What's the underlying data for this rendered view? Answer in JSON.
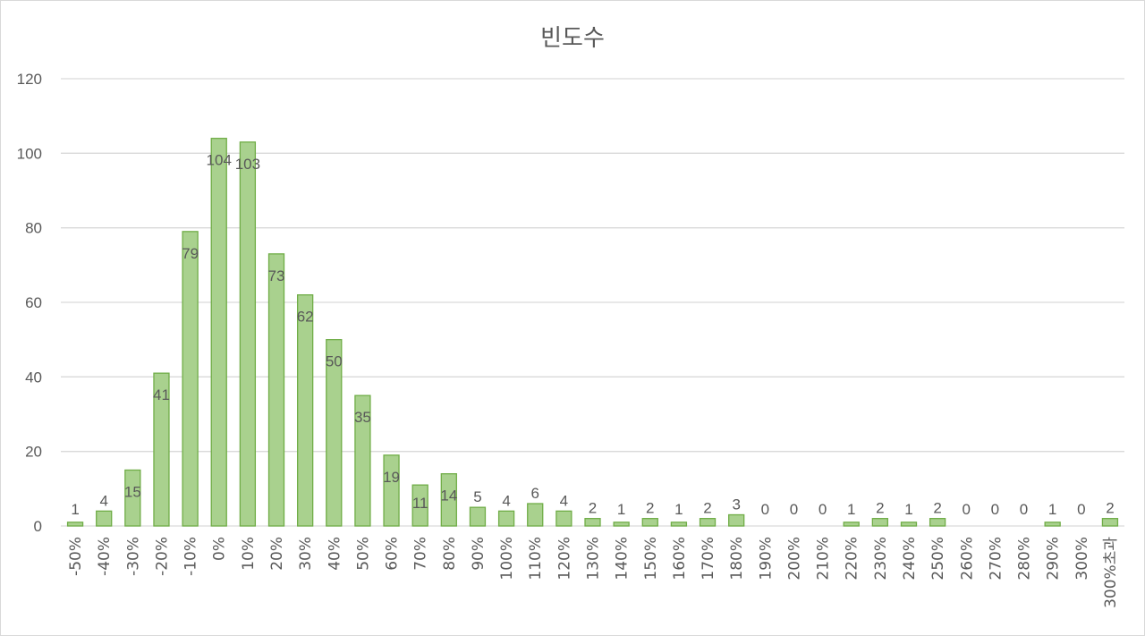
{
  "chart_data": {
    "type": "bar",
    "title": "빈도수",
    "xlabel": "",
    "ylabel": "",
    "ylim": [
      0,
      120
    ],
    "yticks": [
      0,
      20,
      40,
      60,
      80,
      100,
      120
    ],
    "grid": true,
    "legend": "none",
    "data_labels": true,
    "categories": [
      "-50%",
      "-40%",
      "-30%",
      "-20%",
      "-10%",
      "0%",
      "10%",
      "20%",
      "30%",
      "40%",
      "50%",
      "60%",
      "70%",
      "80%",
      "90%",
      "100%",
      "110%",
      "120%",
      "130%",
      "140%",
      "150%",
      "160%",
      "170%",
      "180%",
      "190%",
      "200%",
      "210%",
      "220%",
      "230%",
      "240%",
      "250%",
      "260%",
      "270%",
      "280%",
      "290%",
      "300%",
      "300%초과"
    ],
    "values": [
      1,
      4,
      15,
      41,
      79,
      104,
      103,
      73,
      62,
      50,
      35,
      19,
      11,
      14,
      5,
      4,
      6,
      4,
      2,
      1,
      2,
      1,
      2,
      3,
      0,
      0,
      0,
      1,
      2,
      1,
      2,
      0,
      0,
      0,
      1,
      0,
      2
    ],
    "colors": {
      "bar_fill": "#a9d18e",
      "bar_stroke": "#70ad47",
      "grid": "#d9d9d9",
      "text": "#595959"
    }
  }
}
